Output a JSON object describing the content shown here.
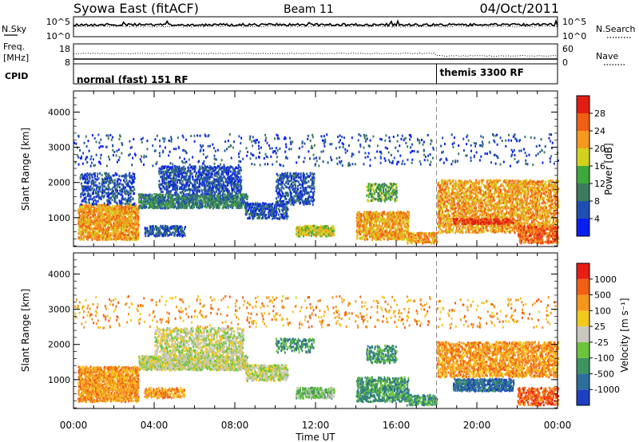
{
  "header": {
    "station": "Syowa East (fitACF)",
    "beam": "Beam 11",
    "date": "04/Oct/2011"
  },
  "noise_panel": {
    "left_label": "N.Sky",
    "right_label": "N.Search",
    "left_top_tick": "10^5",
    "left_bottom_tick": "10^0",
    "right_top_tick": "10^5",
    "right_bottom_tick": "10^0"
  },
  "freq_panel": {
    "left_label_1": "Freq.",
    "left_label_2": "[MHz]",
    "right_label": "Nave",
    "left_top_tick": "18",
    "left_bottom_tick": "8",
    "right_top_tick": "60",
    "right_bottom_tick": "0"
  },
  "cpid_panel": {
    "label": "CPID",
    "mode_1": "normal (fast) 151 RF",
    "mode_2": "themis 3300 RF",
    "mode_change_hour": 18.0
  },
  "chart_data": [
    {
      "type": "heatmap",
      "name": "power-panel",
      "ylabel": "Slant Range [km]",
      "xlabel": "",
      "ylim": [
        180,
        4600
      ],
      "xlim": [
        0,
        24
      ],
      "yticks": [
        1000,
        2000,
        3000,
        4000
      ],
      "colorbar": {
        "label": "Power [dB]",
        "ticks": [
          "4",
          "8",
          "12",
          "16",
          "20",
          "24",
          "28"
        ],
        "colors": [
          "#0a1ef2",
          "#1f4fb0",
          "#3d7a5f",
          "#3da83c",
          "#d2d21e",
          "#f59a1e",
          "#f05f14",
          "#e01e14"
        ]
      },
      "regions": [
        {
          "t0": 0.2,
          "t1": 3.2,
          "r0": 400,
          "r1": 1400,
          "c": 5,
          "d": 0.55
        },
        {
          "t0": 0.3,
          "t1": 3.0,
          "r0": 1400,
          "r1": 2300,
          "c": 1,
          "d": 0.25
        },
        {
          "t0": 3.2,
          "t1": 8.6,
          "r0": 1300,
          "r1": 1700,
          "c": 2,
          "d": 0.55
        },
        {
          "t0": 4.2,
          "t1": 8.3,
          "r0": 1700,
          "r1": 2500,
          "c": 1,
          "d": 0.35
        },
        {
          "t0": 3.5,
          "t1": 5.5,
          "r0": 500,
          "r1": 800,
          "c": 1,
          "d": 0.4
        },
        {
          "t0": 8.5,
          "t1": 10.6,
          "r0": 1000,
          "r1": 1450,
          "c": 1,
          "d": 0.45
        },
        {
          "t0": 10.0,
          "t1": 11.9,
          "r0": 1400,
          "r1": 2300,
          "c": 1,
          "d": 0.3
        },
        {
          "t0": 11.0,
          "t1": 12.9,
          "r0": 500,
          "r1": 800,
          "c": 4,
          "d": 0.6
        },
        {
          "t0": 14.0,
          "t1": 16.6,
          "r0": 400,
          "r1": 1200,
          "c": 5,
          "d": 0.45
        },
        {
          "t0": 14.5,
          "t1": 16.0,
          "r0": 1500,
          "r1": 2000,
          "c": 3,
          "d": 0.35
        },
        {
          "t0": 16.5,
          "t1": 18.0,
          "r0": 300,
          "r1": 600,
          "c": 5,
          "d": 0.45
        },
        {
          "t0": 18.0,
          "t1": 24.0,
          "r0": 600,
          "r1": 2100,
          "c": 5,
          "d": 0.38
        },
        {
          "t0": 18.8,
          "t1": 21.8,
          "r0": 850,
          "r1": 1000,
          "c": 7,
          "d": 0.6
        },
        {
          "t0": 22.0,
          "t1": 24.0,
          "r0": 300,
          "r1": 800,
          "c": 6,
          "d": 0.45
        },
        {
          "t0": 0.0,
          "t1": 24.0,
          "r0": 2500,
          "r1": 3400,
          "c": 1,
          "d": 0.04
        }
      ]
    },
    {
      "type": "heatmap",
      "name": "velocity-panel",
      "ylabel": "Slant Range [km]",
      "xlabel": "Time UT",
      "ylim": [
        180,
        4600
      ],
      "xlim": [
        0,
        24
      ],
      "yticks": [
        1000,
        2000,
        3000,
        4000
      ],
      "xticks": [
        "00:00",
        "04:00",
        "08:00",
        "12:00",
        "16:00",
        "20:00",
        "00:00"
      ],
      "colorbar": {
        "label": "Velocity [m s⁻¹]",
        "ticks": [
          "1000",
          "500",
          "100",
          "25",
          "-25",
          "-100",
          "-500",
          "-1000"
        ],
        "colors": [
          "#1f3fc0",
          "#2d6f9a",
          "#3c9460",
          "#6cc43c",
          "#c8c8c0",
          "#f2c81e",
          "#f5961e",
          "#f05f14",
          "#e81e14"
        ]
      },
      "regions": [
        {
          "t0": 0.2,
          "t1": 3.2,
          "r0": 400,
          "r1": 1400,
          "c": 6,
          "d": 0.55
        },
        {
          "t0": 3.2,
          "t1": 8.6,
          "r0": 1300,
          "r1": 1700,
          "c": 4,
          "d": 0.6
        },
        {
          "t0": 4.0,
          "t1": 8.4,
          "r0": 1700,
          "r1": 2500,
          "c": 4,
          "d": 0.35
        },
        {
          "t0": 3.5,
          "t1": 5.5,
          "r0": 500,
          "r1": 800,
          "c": 6,
          "d": 0.4
        },
        {
          "t0": 8.5,
          "t1": 10.6,
          "r0": 1000,
          "r1": 1450,
          "c": 4,
          "d": 0.45
        },
        {
          "t0": 10.0,
          "t1": 11.9,
          "r0": 1800,
          "r1": 2200,
          "c": 2,
          "d": 0.3
        },
        {
          "t0": 11.0,
          "t1": 12.9,
          "r0": 500,
          "r1": 800,
          "c": 3,
          "d": 0.55
        },
        {
          "t0": 14.0,
          "t1": 16.6,
          "r0": 400,
          "r1": 1100,
          "c": 2,
          "d": 0.45
        },
        {
          "t0": 14.5,
          "t1": 16.0,
          "r0": 1500,
          "r1": 2000,
          "c": 2,
          "d": 0.35
        },
        {
          "t0": 16.5,
          "t1": 18.0,
          "r0": 300,
          "r1": 600,
          "c": 2,
          "d": 0.45
        },
        {
          "t0": 18.0,
          "t1": 24.0,
          "r0": 1100,
          "r1": 2100,
          "c": 6,
          "d": 0.4
        },
        {
          "t0": 18.8,
          "t1": 21.8,
          "r0": 700,
          "r1": 1050,
          "c": 1,
          "d": 0.55
        },
        {
          "t0": 22.0,
          "t1": 24.0,
          "r0": 300,
          "r1": 800,
          "c": 7,
          "d": 0.4
        },
        {
          "t0": 0.0,
          "t1": 24.0,
          "r0": 2500,
          "r1": 3400,
          "c": 6,
          "d": 0.04
        }
      ]
    }
  ]
}
